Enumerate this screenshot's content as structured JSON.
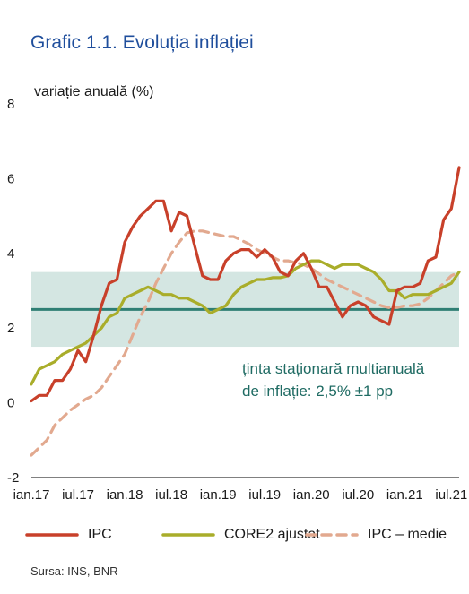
{
  "title": "Grafic 1.1. Evoluția  inflației",
  "source": "Sursa: INS, BNR",
  "chart_data": {
    "type": "line",
    "ylabel": "variație anuală (%)",
    "ylim": [
      -2,
      8
    ],
    "yticks": [
      "8",
      "6",
      "4",
      "2",
      "0",
      "-2"
    ],
    "ytick_values": [
      8,
      6,
      4,
      2,
      0,
      -2
    ],
    "xtick_labels": [
      "ian.17",
      "iul.17",
      "ian.18",
      "iul.18",
      "ian.19",
      "iul.19",
      "ian.20",
      "iul.20",
      "ian.21",
      "iul.21"
    ],
    "target": {
      "center": 2.5,
      "band": [
        1.5,
        3.5
      ],
      "label_line1": "ținta staționară multianuală",
      "label_line2": "de inflație: 2,5% ±1 pp"
    },
    "series": [
      {
        "name": "IPC",
        "color": "#c8402a",
        "style": "solid",
        "values": [
          0.05,
          0.2,
          0.2,
          0.6,
          0.6,
          0.9,
          1.4,
          1.1,
          1.8,
          2.6,
          3.2,
          3.3,
          4.3,
          4.7,
          5.0,
          5.2,
          5.4,
          5.4,
          4.6,
          5.1,
          5.0,
          4.2,
          3.4,
          3.3,
          3.3,
          3.8,
          4.0,
          4.1,
          4.1,
          3.9,
          4.1,
          3.9,
          3.5,
          3.4,
          3.8,
          4.0,
          3.6,
          3.1,
          3.1,
          2.7,
          2.3,
          2.6,
          2.7,
          2.6,
          2.3,
          2.2,
          2.1,
          3.0,
          3.1,
          3.1,
          3.2,
          3.8,
          3.9,
          4.9,
          5.2,
          6.3
        ]
      },
      {
        "name": "CORE2 ajustat",
        "color": "#a9ad2a",
        "style": "solid",
        "values": [
          0.5,
          0.9,
          1.0,
          1.1,
          1.3,
          1.4,
          1.5,
          1.6,
          1.8,
          2.0,
          2.3,
          2.4,
          2.8,
          2.9,
          3.0,
          3.1,
          3.0,
          2.9,
          2.9,
          2.8,
          2.8,
          2.7,
          2.6,
          2.4,
          2.5,
          2.6,
          2.9,
          3.1,
          3.2,
          3.3,
          3.3,
          3.35,
          3.35,
          3.4,
          3.6,
          3.7,
          3.8,
          3.8,
          3.7,
          3.6,
          3.7,
          3.7,
          3.7,
          3.6,
          3.5,
          3.3,
          3.0,
          3.0,
          2.8,
          2.9,
          2.9,
          2.9,
          3.0,
          3.1,
          3.2,
          3.5
        ]
      },
      {
        "name": "IPC – medie",
        "color": "#e2a98f",
        "style": "dashed",
        "values": [
          -1.4,
          -1.2,
          -1.0,
          -0.6,
          -0.4,
          -0.2,
          -0.05,
          0.1,
          0.2,
          0.4,
          0.7,
          1.0,
          1.3,
          1.8,
          2.3,
          2.7,
          3.2,
          3.6,
          4.0,
          4.3,
          4.55,
          4.6,
          4.6,
          4.55,
          4.5,
          4.45,
          4.45,
          4.35,
          4.25,
          4.1,
          4.0,
          3.9,
          3.8,
          3.8,
          3.75,
          3.7,
          3.6,
          3.45,
          3.3,
          3.2,
          3.1,
          3.0,
          2.9,
          2.8,
          2.7,
          2.6,
          2.55,
          2.55,
          2.6,
          2.6,
          2.65,
          2.8,
          3.0,
          3.2,
          3.4,
          3.5
        ]
      }
    ]
  }
}
